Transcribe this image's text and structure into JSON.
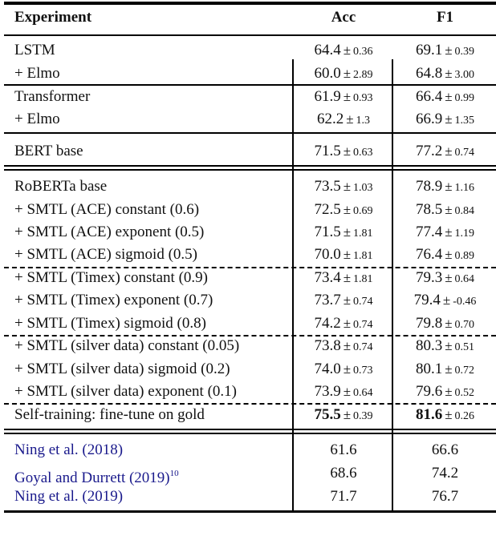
{
  "table": {
    "headers": {
      "experiment": "Experiment",
      "acc": "Acc",
      "f1": "F1"
    },
    "rows": [
      {
        "name": "LSTM",
        "acc": "64.4",
        "acc_sd": "0.36",
        "f1": "69.1",
        "f1_sd": "0.39"
      },
      {
        "name": "+ Elmo",
        "acc": "60.0",
        "acc_sd": "2.89",
        "f1": "64.8",
        "f1_sd": "3.00"
      },
      {
        "name": "Transformer",
        "acc": "61.9",
        "acc_sd": "0.93",
        "f1": "66.4",
        "f1_sd": "0.99"
      },
      {
        "name": "+ Elmo",
        "acc": "62.2",
        "acc_sd": "1.3",
        "f1": "66.9",
        "f1_sd": "1.35"
      },
      {
        "name": "BERT base",
        "acc": "71.5",
        "acc_sd": "0.63",
        "f1": "77.2",
        "f1_sd": "0.74"
      },
      {
        "name": "RoBERTa base",
        "acc": "73.5",
        "acc_sd": "1.03",
        "f1": "78.9",
        "f1_sd": "1.16"
      },
      {
        "name": "+ SMTL (ACE) constant (0.6)",
        "acc": "72.5",
        "acc_sd": "0.69",
        "f1": "78.5",
        "f1_sd": "0.84"
      },
      {
        "name": "+ SMTL (ACE) exponent (0.5)",
        "acc": "71.5",
        "acc_sd": "1.81",
        "f1": "77.4",
        "f1_sd": "1.19"
      },
      {
        "name": "+ SMTL (ACE) sigmoid (0.5)",
        "acc": "70.0",
        "acc_sd": "1.81",
        "f1": "76.4",
        "f1_sd": "0.89"
      },
      {
        "name": "+ SMTL (Timex) constant (0.9)",
        "acc": "73.4",
        "acc_sd": "1.81",
        "f1": "79.3",
        "f1_sd": "0.64"
      },
      {
        "name": "+ SMTL (Timex) exponent (0.7)",
        "acc": "73.7",
        "acc_sd": "0.74",
        "f1": "79.4",
        "f1_sd": "-0.46"
      },
      {
        "name": "+ SMTL (Timex) sigmoid (0.8)",
        "acc": "74.2",
        "acc_sd": "0.74",
        "f1": "79.8",
        "f1_sd": "0.70"
      },
      {
        "name": "+ SMTL (silver data) constant (0.05)",
        "acc": "73.8",
        "acc_sd": "0.74",
        "f1": "80.3",
        "f1_sd": "0.51"
      },
      {
        "name": "+ SMTL (silver data) sigmoid (0.2)",
        "acc": "74.0",
        "acc_sd": "0.73",
        "f1": "80.1",
        "f1_sd": "0.72"
      },
      {
        "name": "+ SMTL (silver data) exponent (0.1)",
        "acc": "73.9",
        "acc_sd": "0.64",
        "f1": "79.6",
        "f1_sd": "0.52"
      },
      {
        "name": "Self-training: fine-tune on gold",
        "acc": "75.5",
        "acc_sd": "0.39",
        "f1": "81.6",
        "f1_sd": "0.26",
        "bold": true
      },
      {
        "name": "Ning et al. (2018)",
        "acc": "61.6",
        "f1": "66.6",
        "cite": true
      },
      {
        "name": "Goyal and Durrett (2019)",
        "sup": "10",
        "acc": "68.6",
        "f1": "74.2",
        "cite": true
      },
      {
        "name": "Ning et al. (2019)",
        "acc": "71.7",
        "f1": "76.7",
        "cite": true
      }
    ],
    "pm_symbol": "±",
    "colors": {
      "citation": "#1a1a8c",
      "rule": "#000000"
    }
  }
}
